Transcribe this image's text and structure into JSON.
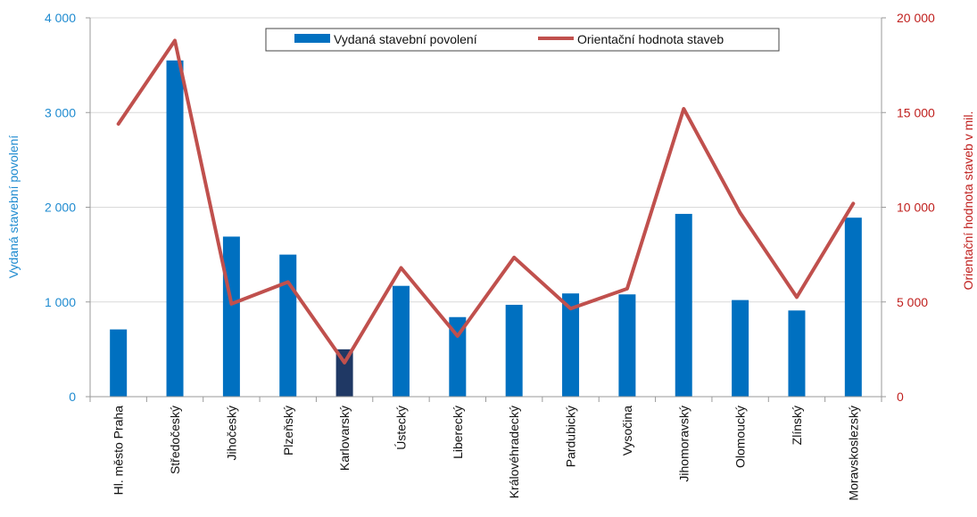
{
  "chart_data": {
    "type": "bar",
    "categories": [
      "Hl. město Praha",
      "Středočeský",
      "Jihočeský",
      "Plzeňský",
      "Karlovarský",
      "Ústecký",
      "Liberecký",
      "Královéhradecký",
      "Pardubický",
      "Vysočina",
      "Jihomoravský",
      "Olomoucký",
      "Zlínský",
      "Moravskoslezský"
    ],
    "series": [
      {
        "name": "Vydaná stavební povolení",
        "type": "bar",
        "axis": "left",
        "color": "#0070c0",
        "highlight_color": "#1f3864",
        "highlight_index": 4,
        "values": [
          710,
          3550,
          1690,
          1500,
          500,
          1170,
          840,
          970,
          1090,
          1080,
          1930,
          1020,
          910,
          1890
        ]
      },
      {
        "name": "Orientační hodnota staveb",
        "type": "line",
        "axis": "right",
        "color": "#c0504d",
        "values": [
          14400,
          18800,
          4900,
          6050,
          1800,
          6800,
          3200,
          7350,
          4650,
          5700,
          15200,
          9700,
          5250,
          10200
        ]
      }
    ],
    "ylabel": "Vydaná stavební povolení",
    "y2label": "Orientační hodnota staveb v mil.",
    "ylim": [
      0,
      4000
    ],
    "y2lim": [
      0,
      20000
    ],
    "yticks": [
      "0",
      "1 000",
      "2 000",
      "3 000",
      "4 000"
    ],
    "y2ticks": [
      "0",
      "5 000",
      "10 000",
      "15 000",
      "20 000"
    ],
    "grid": true,
    "legend_position": "top-center"
  }
}
